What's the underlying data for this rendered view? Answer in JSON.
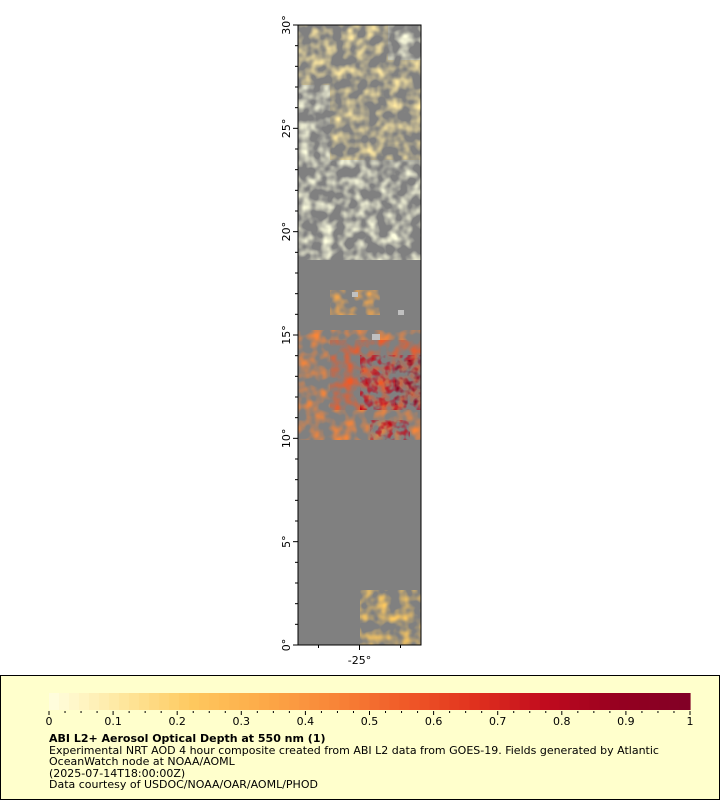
{
  "map": {
    "lat_ticks": [
      "0°",
      "5°",
      "10°",
      "15°",
      "20°",
      "25°",
      "30°"
    ],
    "lon_ticks": [
      "-25°"
    ],
    "lat_range": [
      0,
      30
    ],
    "lon_range": [
      -26.5,
      -23.5
    ],
    "land_color": "#808080",
    "no_data_color": "#c0c0c0",
    "colormap": [
      "#ffffe0",
      "#fee8a0",
      "#fec95f",
      "#fdaa48",
      "#f88538",
      "#f05a28",
      "#e0301e",
      "#c00a1e",
      "#960020",
      "#800026"
    ]
  },
  "legend": {
    "tick_labels": [
      "0",
      "0.1",
      "0.2",
      "0.3",
      "0.4",
      "0.5",
      "0.6",
      "0.7",
      "0.8",
      "0.9",
      "1"
    ],
    "range": [
      0,
      1
    ]
  },
  "caption": {
    "title": "ABI L2+ Aerosol Optical Depth at 550 nm (1)",
    "line1": "Experimental NRT AOD 4 hour composite created from ABI L2 data from GOES-19. Fields generated by Atlantic OceanWatch node at NOAA/AOML",
    "line2": "(2025-07-14T18:00:00Z)",
    "line3": "Data courtesy of USDOC/NOAA/OAR/AOML/PHOD"
  }
}
